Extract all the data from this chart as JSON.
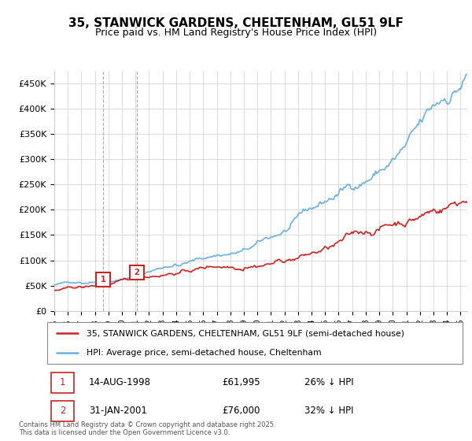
{
  "title": "35, STANWICK GARDENS, CHELTENHAM, GL51 9LF",
  "subtitle": "Price paid vs. HM Land Registry's House Price Index (HPI)",
  "legend_line1": "35, STANWICK GARDENS, CHELTENHAM, GL51 9LF (semi-detached house)",
  "legend_line2": "HPI: Average price, semi-detached house, Cheltenham",
  "sale1_date": "14-AUG-1998",
  "sale1_price": "£61,995",
  "sale1_hpi": "26% ↓ HPI",
  "sale2_date": "31-JAN-2001",
  "sale2_price": "£76,000",
  "sale2_hpi": "32% ↓ HPI",
  "footer": "Contains HM Land Registry data © Crown copyright and database right 2025.\nThis data is licensed under the Open Government Licence v3.0.",
  "hpi_color": "#6ab0e0",
  "price_color": "#cc2222",
  "marker_box_color": "#cc2222",
  "background_color": "#ffffff",
  "plot_bg_color": "#ffffff",
  "grid_color": "#cccccc",
  "ylim": [
    0,
    475000
  ],
  "yticks": [
    0,
    50000,
    100000,
    150000,
    200000,
    250000,
    300000,
    350000,
    400000,
    450000
  ],
  "ytick_labels": [
    "£0",
    "£50K",
    "£100K",
    "£150K",
    "£200K",
    "£250K",
    "£300K",
    "£350K",
    "£400K",
    "£450K"
  ],
  "sale1_x": 1998.62,
  "sale1_y": 61995,
  "sale2_x": 2001.08,
  "sale2_y": 76000,
  "vline1_x": 1998.62,
  "vline2_x": 2001.08,
  "xlim_start": 1995,
  "xlim_end": 2025.5
}
